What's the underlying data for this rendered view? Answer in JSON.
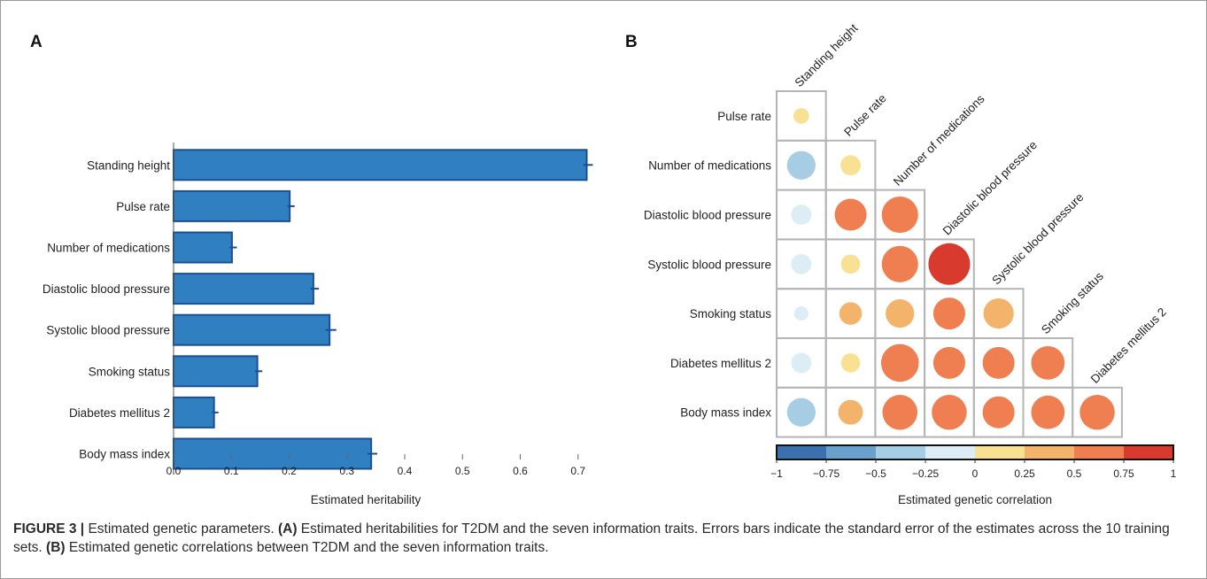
{
  "chart_data": [
    {
      "panel": "A",
      "type": "bar",
      "orientation": "horizontal",
      "categories": [
        "Standing height",
        "Pulse rate",
        "Number of medications",
        "Diastolic blood pressure",
        "Systolic blood pressure",
        "Smoking status",
        "Diabetes mellitus 2",
        "Body mass index"
      ],
      "values": [
        0.715,
        0.201,
        0.101,
        0.242,
        0.27,
        0.145,
        0.07,
        0.342
      ],
      "errors": [
        0.006,
        0.004,
        0.004,
        0.005,
        0.007,
        0.004,
        0.003,
        0.006
      ],
      "xlabel": "Estimated heritability",
      "xlim": [
        0,
        0.7
      ],
      "xticks": [
        "0.0",
        "0.1",
        "0.2",
        "0.3",
        "0.4",
        "0.5",
        "0.6",
        "0.7"
      ],
      "bar_color": "#2f7fc1",
      "bar_edge": "#1b4f94"
    },
    {
      "panel": "B",
      "type": "heatmap",
      "style": "lower-triangle correlation circles",
      "traits": [
        "Standing height",
        "Pulse rate",
        "Number of medications",
        "Diastolic blood pressure",
        "Systolic blood pressure",
        "Smoking status",
        "Diabetes mellitus 2",
        "Body mass index"
      ],
      "values": [
        [
          null,
          null,
          null,
          null,
          null,
          null,
          null
        ],
        [
          0.12,
          null,
          null,
          null,
          null,
          null,
          null
        ],
        [
          -0.4,
          0.2,
          null,
          null,
          null,
          null,
          null
        ],
        [
          -0.2,
          0.5,
          0.65,
          null,
          null,
          null,
          null
        ],
        [
          -0.2,
          0.18,
          0.65,
          0.85,
          null,
          null,
          null
        ],
        [
          -0.1,
          0.25,
          0.4,
          0.5,
          0.45,
          null,
          null
        ],
        [
          -0.2,
          0.18,
          0.7,
          0.5,
          0.5,
          0.55,
          null
        ],
        [
          -0.4,
          0.3,
          0.6,
          0.6,
          0.5,
          0.55,
          0.6
        ]
      ],
      "legend_title": "Estimated genetic correlation",
      "legend_ticks": [
        "−1",
        "−0.75",
        "−0.5",
        "−0.25",
        "0",
        "0.25",
        "0.5",
        "0.75",
        "1"
      ],
      "legend_colors": [
        "#3b6fae",
        "#6aa1cc",
        "#a6cde3",
        "#dcedf5",
        "#f8e193",
        "#f4b36a",
        "#ef7f50",
        "#d93a2e"
      ]
    }
  ],
  "caption": {
    "label": "FIGURE 3 |",
    "text1": " Estimated genetic parameters. ",
    "a": "(A)",
    "text2": " Estimated heritabilities for T2DM and the seven information traits. Errors bars indicate the standard error of the estimates across the 10 training sets. ",
    "b": "(B)",
    "text3": " Estimated genetic correlations between T2DM and the seven information traits."
  }
}
